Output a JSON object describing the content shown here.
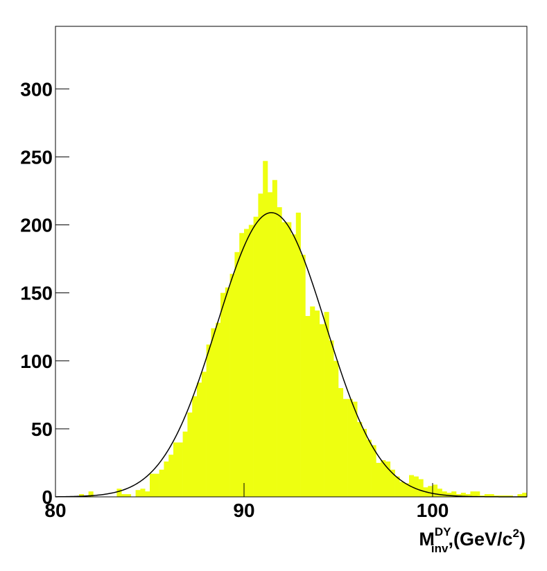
{
  "chart_data": {
    "type": "histogram",
    "bins": [
      80,
      80.25,
      80.5,
      80.75,
      81,
      81.25,
      81.5,
      81.75,
      82,
      82.25,
      82.5,
      82.75,
      83,
      83.25,
      83.5,
      83.75,
      84,
      84.25,
      84.5,
      84.75,
      85,
      85.25,
      85.5,
      85.75,
      86,
      86.25,
      86.5,
      86.75,
      87,
      87.25,
      87.5,
      87.75,
      88,
      88.25,
      88.5,
      88.75,
      89,
      89.25,
      89.5,
      89.75,
      90,
      90.25,
      90.5,
      90.75,
      91,
      91.25,
      91.5,
      91.75,
      92,
      92.25,
      92.5,
      92.75,
      93,
      93.25,
      93.5,
      93.75,
      94,
      94.25,
      94.5,
      94.75,
      95,
      95.25,
      95.5,
      95.75,
      96,
      96.25,
      96.5,
      96.75,
      97,
      97.25,
      97.5,
      97.75,
      98,
      98.25,
      98.5,
      98.75,
      99,
      99.25,
      99.5,
      99.75,
      100,
      100.25,
      100.5,
      100.75,
      101,
      101.25,
      101.5,
      101.75,
      102,
      102.25,
      102.5,
      102.75,
      103,
      103.25,
      103.5,
      103.75,
      104,
      104.25,
      104.5,
      104.75,
      105
    ],
    "values": [
      0,
      0,
      0,
      0,
      0,
      2,
      1,
      4,
      0,
      0,
      0,
      0,
      0,
      6,
      2,
      2,
      0,
      5,
      6,
      4,
      17,
      17,
      20,
      26,
      31,
      40,
      40,
      48,
      62,
      74,
      84,
      92,
      112,
      124,
      128,
      150,
      154,
      164,
      180,
      194,
      197,
      200,
      206,
      223,
      247,
      224,
      233,
      213,
      202,
      202,
      193,
      209,
      178,
      133,
      140,
      137,
      127,
      136,
      115,
      100,
      80,
      72,
      72,
      70,
      55,
      50,
      42,
      38,
      25,
      27,
      26,
      20,
      15,
      11,
      10,
      16,
      15,
      13,
      7,
      8,
      9,
      6,
      4,
      3,
      4,
      2,
      3,
      2,
      4,
      4,
      1,
      2,
      2,
      1,
      1,
      1,
      1,
      0,
      2,
      3
    ],
    "color": "#eeff10",
    "fit": {
      "amplitude": 209,
      "mean": 91.45,
      "sigma": 2.88,
      "color": "#000000"
    },
    "xlim": [
      80,
      105
    ],
    "ylim": [
      0,
      346
    ],
    "xticks": [
      80,
      90,
      100
    ],
    "yticks": [
      0,
      50,
      100,
      150,
      200,
      250,
      300
    ],
    "xlabel": {
      "base": "M",
      "sup": "DY",
      "sub": "inv",
      "rest": ",(GeV/c",
      "power": "2",
      "end": ")"
    }
  }
}
